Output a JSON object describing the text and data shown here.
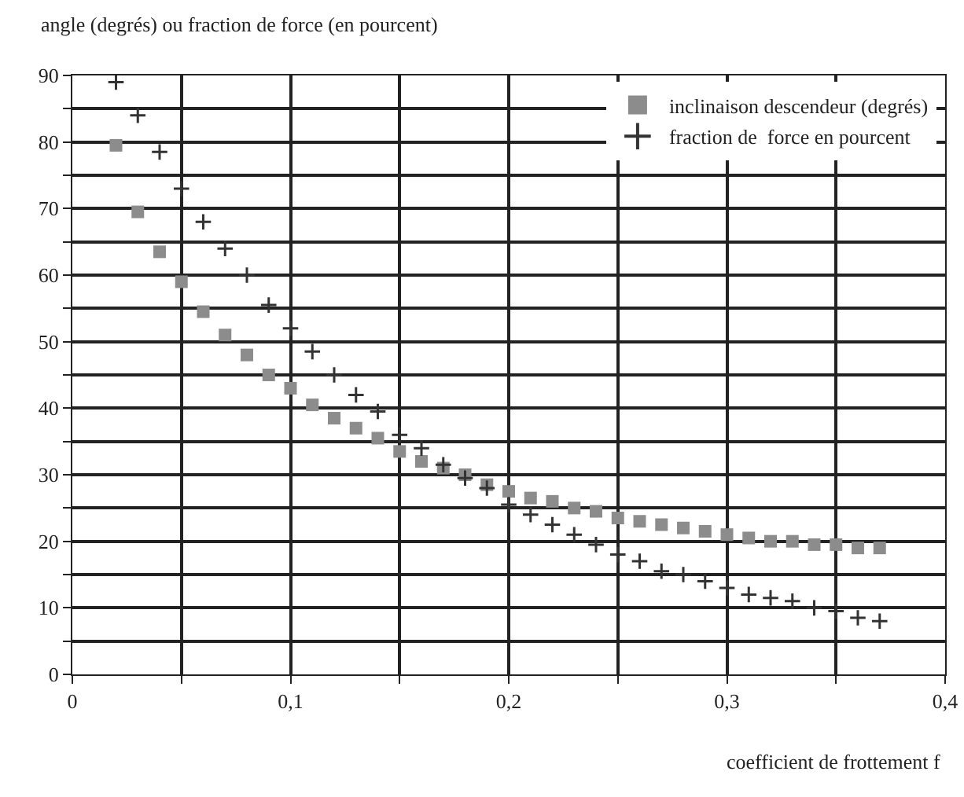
{
  "chart_data": {
    "type": "scatter",
    "ylabel": "angle (degrés) ou fraction de force (en pourcent)",
    "xlabel": "coefficient de frottement f",
    "x": [
      0.02,
      0.03,
      0.04,
      0.05,
      0.06,
      0.07,
      0.08,
      0.09,
      0.1,
      0.11,
      0.12,
      0.13,
      0.14,
      0.15,
      0.16,
      0.17,
      0.18,
      0.19,
      0.2,
      0.21,
      0.22,
      0.23,
      0.24,
      0.25,
      0.26,
      0.27,
      0.28,
      0.29,
      0.3,
      0.31,
      0.32,
      0.33,
      0.34,
      0.35,
      0.36,
      0.37
    ],
    "series": [
      {
        "name": "inclinaison descendeur (degrés)",
        "color": "#8c8c8c",
        "marker": "square",
        "values": [
          79.5,
          69.5,
          63.5,
          59,
          54.5,
          51,
          48,
          45,
          43,
          40.5,
          38.5,
          37,
          35.5,
          33.5,
          32,
          31,
          30,
          28.5,
          27.5,
          26.5,
          26,
          25,
          24.5,
          23.5,
          23,
          22.5,
          22,
          21.5,
          21,
          20.5,
          20,
          20,
          19.5,
          19.5,
          19,
          19
        ]
      },
      {
        "name": "fraction de  force en pourcent",
        "color": "#333333",
        "marker": "cross",
        "values": [
          89,
          84,
          78.5,
          73,
          68,
          64,
          60,
          55.5,
          52,
          48.5,
          45,
          42,
          39.5,
          36,
          34,
          31.5,
          29.5,
          28,
          25.5,
          24,
          22.5,
          21,
          19.5,
          18,
          17,
          15.5,
          15,
          14,
          13,
          12,
          11.5,
          11,
          10,
          9.5,
          8.5,
          8
        ]
      }
    ],
    "xlim": [
      0,
      0.4
    ],
    "xticks": [
      0,
      {
        "value": 0.05,
        "label": null
      },
      {
        "value": 0.1,
        "label": "0,1"
      },
      {
        "value": 0.15,
        "label": null
      },
      {
        "value": 0.2,
        "label": "0,2"
      },
      {
        "value": 0.25,
        "label": null
      },
      {
        "value": 0.3,
        "label": "0,3"
      },
      {
        "value": 0.35,
        "label": null
      },
      {
        "value": 0.4,
        "label": "0,4"
      }
    ],
    "ylim": [
      0,
      90
    ],
    "yticks": [
      0,
      {
        "value": 5,
        "label": null
      },
      10,
      {
        "value": 15,
        "label": null
      },
      20,
      {
        "value": 25,
        "label": null
      },
      30,
      {
        "value": 35,
        "label": null
      },
      40,
      {
        "value": 45,
        "label": null
      },
      50,
      {
        "value": 55,
        "label": null
      },
      60,
      {
        "value": 65,
        "label": null
      },
      70,
      {
        "value": 75,
        "label": null
      },
      80,
      {
        "value": 85,
        "label": null
      },
      90
    ],
    "grid": true,
    "legend": "top right"
  }
}
